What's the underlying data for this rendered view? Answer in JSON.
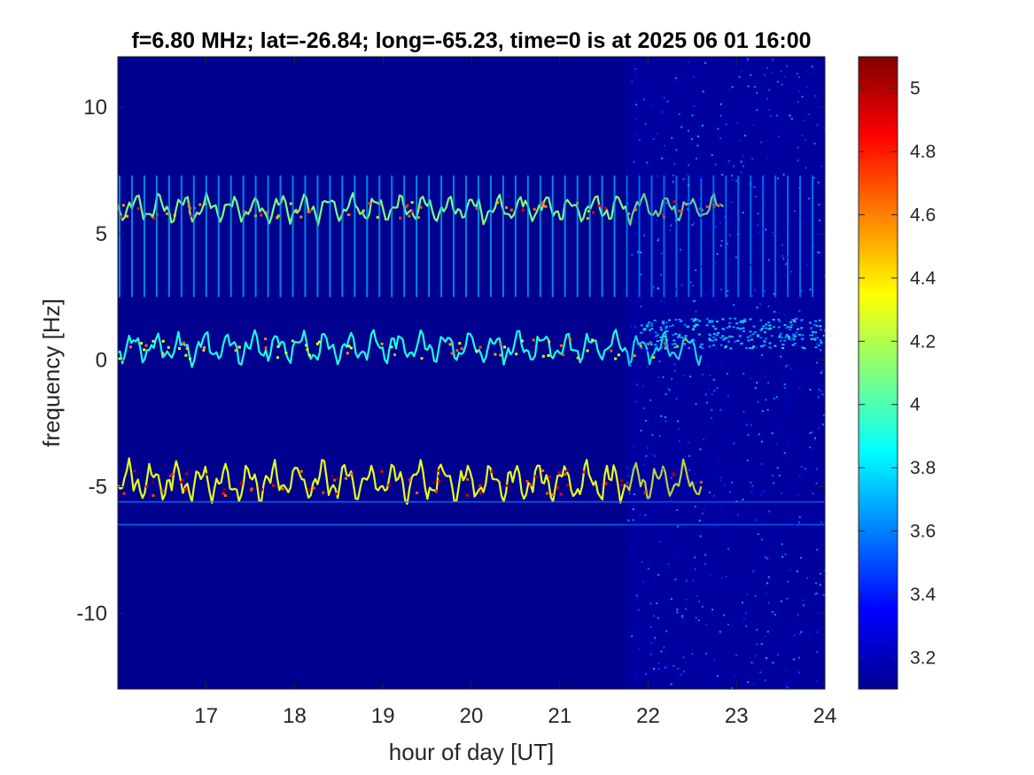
{
  "chart_data": {
    "type": "heatmap",
    "title": "f=6.80 MHz;  lat=-26.84; long=-65.23, time=0 is at 2025 06 01 16:00",
    "xlabel": "hour of day [UT]",
    "ylabel": "frequency [Hz]",
    "xlim": [
      16,
      24
    ],
    "ylim": [
      -13,
      12
    ],
    "x_ticks": [
      17,
      18,
      19,
      20,
      21,
      22,
      23,
      24
    ],
    "x_tick_labels": [
      "17",
      "18",
      "19",
      "20",
      "21",
      "22",
      "23",
      "24"
    ],
    "y_ticks": [
      10,
      5,
      0,
      -5,
      -10
    ],
    "y_tick_labels": [
      "10",
      "5",
      "0",
      "-5",
      "-10"
    ],
    "colorbar": {
      "colormap": "jet",
      "clim": [
        3.1,
        5.1
      ],
      "ticks": [
        5,
        4.8,
        4.6,
        4.4,
        4.2,
        4,
        3.8,
        3.6,
        3.4,
        3.2
      ],
      "tick_labels": [
        "5",
        "4.8",
        "4.6",
        "4.4",
        "4.2",
        "4",
        "3.8",
        "3.6",
        "3.4",
        "3.2"
      ]
    },
    "background_color": "#00008f",
    "features": [
      {
        "kind": "traces",
        "freq_center": 6.0,
        "x_start": 16.0,
        "x_end": 22.85,
        "amplitude": 0.35,
        "level": 4.1
      },
      {
        "kind": "vertical_stripes",
        "freq_low": 2.5,
        "freq_high": 7.3,
        "x_start": 16.0,
        "x_end": 24.0,
        "spacing_hours": 0.14,
        "level": 3.7
      },
      {
        "kind": "traces",
        "freq_center": 0.5,
        "x_start": 16.0,
        "x_end": 22.6,
        "amplitude": 0.4,
        "level": 3.9
      },
      {
        "kind": "diffuse_band",
        "freq_center": 1.1,
        "x_start": 21.9,
        "x_end": 24.0,
        "level": 3.6
      },
      {
        "kind": "traces",
        "freq_center": -4.8,
        "x_start": 16.0,
        "x_end": 22.6,
        "amplitude": 0.5,
        "level": 4.3
      },
      {
        "kind": "line",
        "freq": -5.6,
        "x_start": 16.0,
        "x_end": 24.0,
        "level": 3.6
      },
      {
        "kind": "line",
        "freq": -6.5,
        "x_start": 16.0,
        "x_end": 24.0,
        "level": 3.6
      },
      {
        "kind": "noise_region",
        "x_start": 21.75,
        "x_end": 24.0,
        "level": 3.3
      }
    ]
  }
}
